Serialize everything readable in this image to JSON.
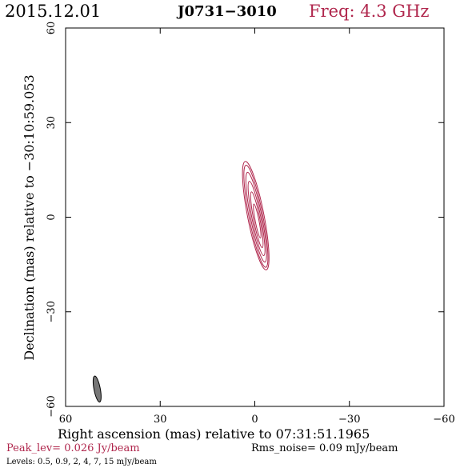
{
  "header": {
    "date": "2015.12.01",
    "source": "J0731−3010",
    "freq": "Freq: 4.3 GHz"
  },
  "footer": {
    "peak": "Peak_lev=  0.026 Jy/beam",
    "rms": "Rms_noise= 0.09 mJy/beam",
    "levels": "Levels: 0.5, 0.9,   2,   4,   7,  15 mJy/beam"
  },
  "colors": {
    "contour": "#b0274d",
    "beam": "#777777",
    "frame": "#000000"
  },
  "chart_data": {
    "type": "contour",
    "xlabel": "Right ascension (mas) relative to 07:31:51.1965",
    "ylabel": "Declination (mas) relative to −30:10:59.053",
    "xlim": [
      60,
      -60
    ],
    "ylim": [
      -60,
      60
    ],
    "xticks": [
      60,
      30,
      0,
      -30,
      -60
    ],
    "yticks": [
      -60,
      -30,
      0,
      30,
      60
    ],
    "xtick_labels": [
      "60",
      "30",
      "0",
      "−30",
      "−60"
    ],
    "ytick_labels": [
      "−60",
      "−30",
      "0",
      "30",
      "60"
    ],
    "contour_levels_mJy": [
      0.5,
      0.9,
      2,
      4,
      7,
      15
    ],
    "contours": [
      {
        "level": 0.5,
        "cx": -0.3,
        "cy": 0.5,
        "a": 17.5,
        "b": 2.6,
        "pa": -11
      },
      {
        "level": 0.9,
        "cx": -0.35,
        "cy": 0.3,
        "a": 16.5,
        "b": 2.2,
        "pa": -11
      },
      {
        "level": 2,
        "cx": -0.45,
        "cy": 0.0,
        "a": 14.5,
        "b": 1.8,
        "pa": -11
      },
      {
        "level": 4,
        "cx": -0.55,
        "cy": -0.4,
        "a": 12.0,
        "b": 1.4,
        "pa": -11
      },
      {
        "level": 7,
        "cx": -0.65,
        "cy": -0.8,
        "a": 9.0,
        "b": 1.0,
        "pa": -11
      },
      {
        "level": 15,
        "cx": -0.75,
        "cy": -1.2,
        "a": 5.5,
        "b": 0.6,
        "pa": -11
      }
    ],
    "beam": {
      "cx": 50,
      "cy": -54.5,
      "a": 4.2,
      "b": 1.0,
      "pa": -11
    }
  }
}
